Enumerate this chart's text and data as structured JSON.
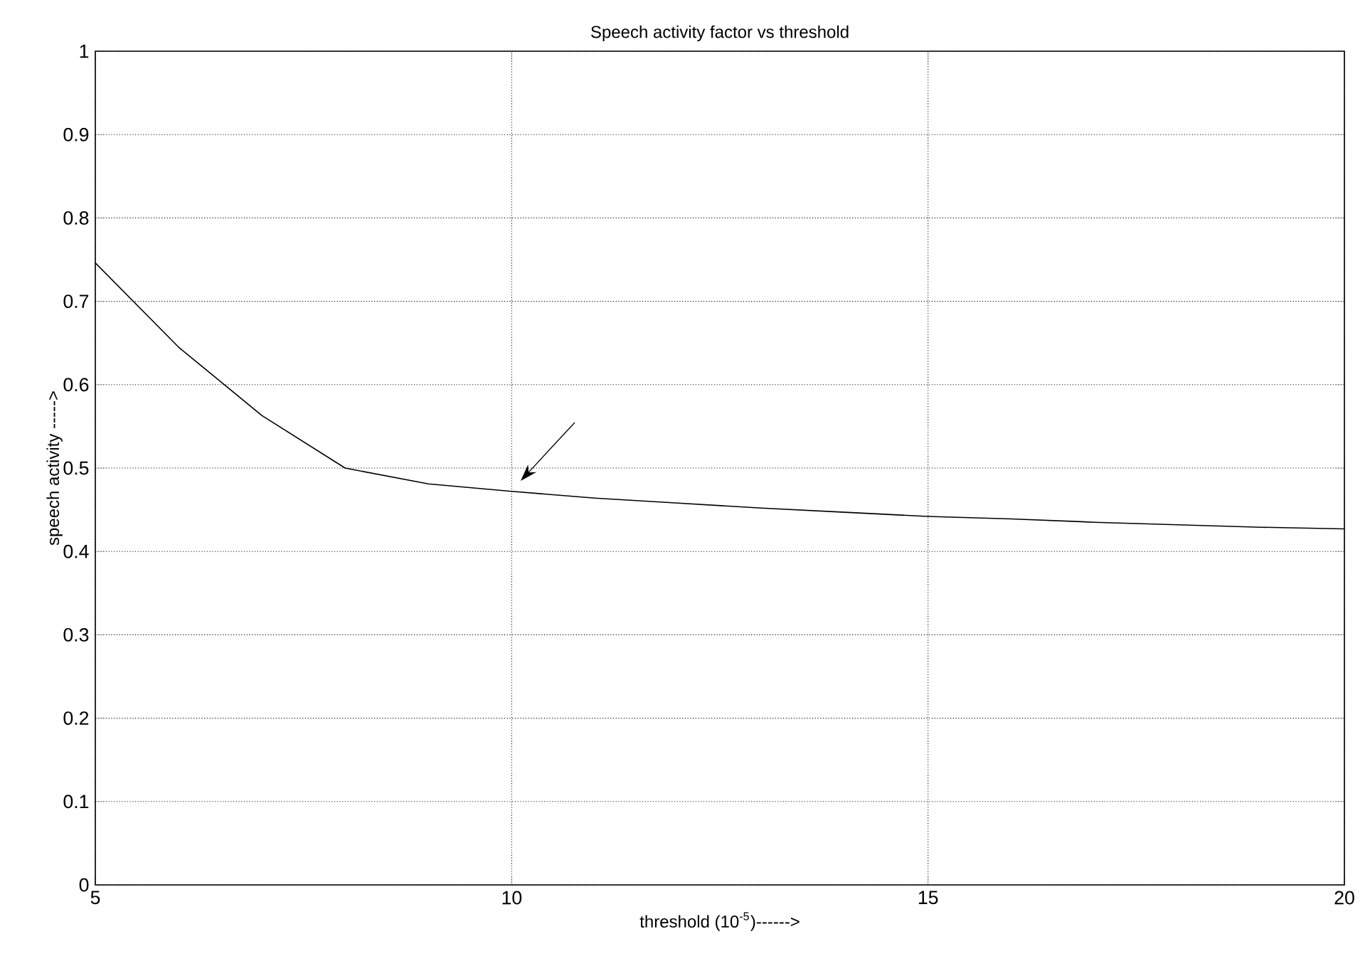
{
  "chart_data": {
    "type": "line",
    "title": "Speech activity factor vs threshold",
    "xlabel": "threshold (10$^{-5}$)------>",
    "ylabel": "speech activity ----->",
    "series": [
      {
        "color": "#000000",
        "x": [
          5,
          6,
          7,
          8,
          9,
          10,
          11,
          12,
          13,
          14,
          15,
          16,
          17,
          18,
          19,
          20
        ],
        "values": [
          0.746,
          0.645,
          0.563,
          0.5,
          0.481,
          0.472,
          0.464,
          0.458,
          0.452,
          0.447,
          0.442,
          0.439,
          0.435,
          0.432,
          0.429,
          0.427
        ]
      }
    ],
    "xlim": [
      5,
      20
    ],
    "xticks": [
      5,
      10,
      15,
      20
    ],
    "ylim": [
      0,
      1
    ],
    "yticks": [
      0,
      0.1,
      0.2,
      0.3,
      0.4,
      0.5,
      0.6,
      0.7,
      0.8,
      0.9,
      1
    ],
    "grid": true,
    "line_style": "solid",
    "marker": "none"
  }
}
